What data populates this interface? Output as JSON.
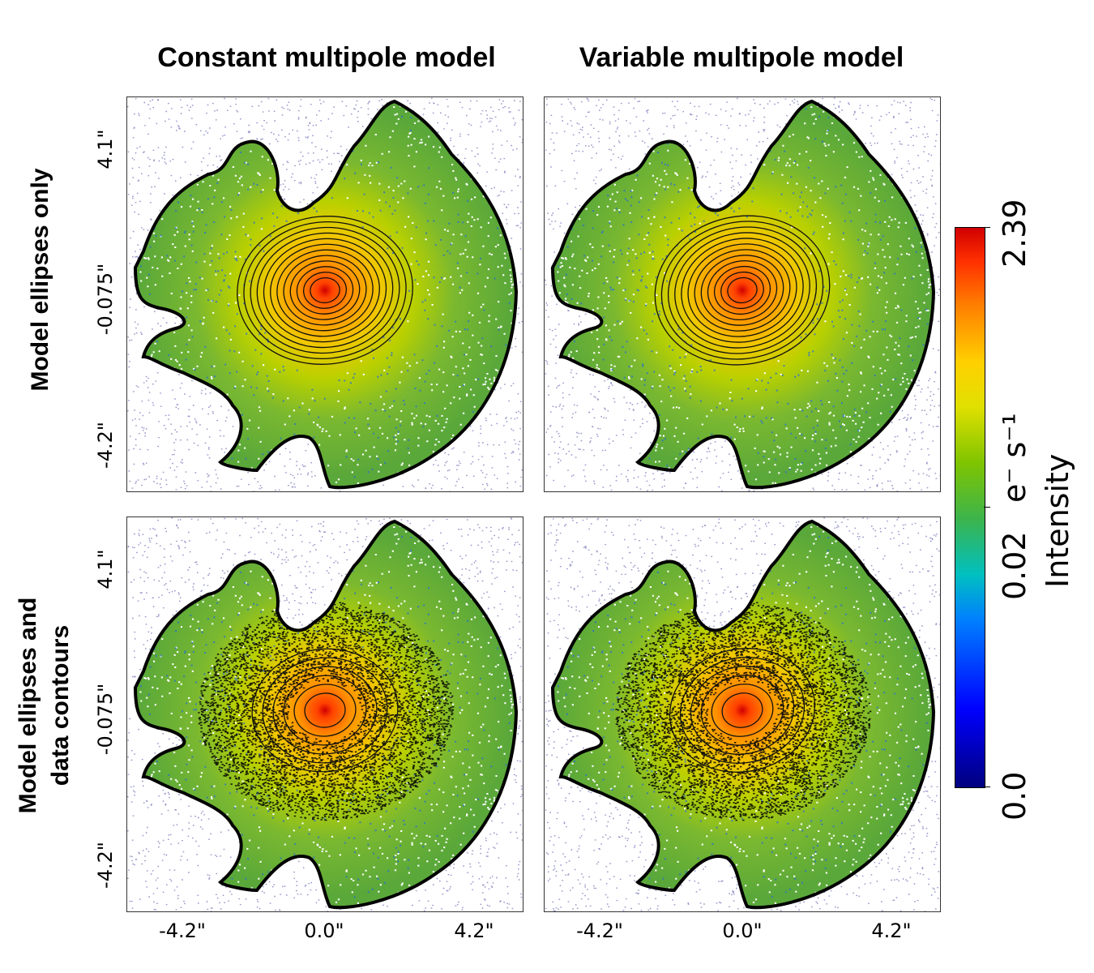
{
  "columns": [
    "Constant multipole model",
    "Variable multipole model"
  ],
  "rows": [
    "Model ellipses only",
    "Model ellipses and data contours"
  ],
  "y_ticks": [
    "4.1\"",
    "-0.075\"",
    "-4.2\""
  ],
  "x_ticks": [
    "-4.2\"",
    "0.0\"",
    "4.2\""
  ],
  "colorbar": {
    "label": "Intensity",
    "unit": "e⁻ s⁻¹",
    "ticks": [
      "0.0",
      "0.02",
      "2.39"
    ],
    "unit_label": "e⁻ s⁻¹"
  },
  "colors": {
    "low": "#00007f",
    "mid": "#3cb44b",
    "high": "#d00000"
  }
}
